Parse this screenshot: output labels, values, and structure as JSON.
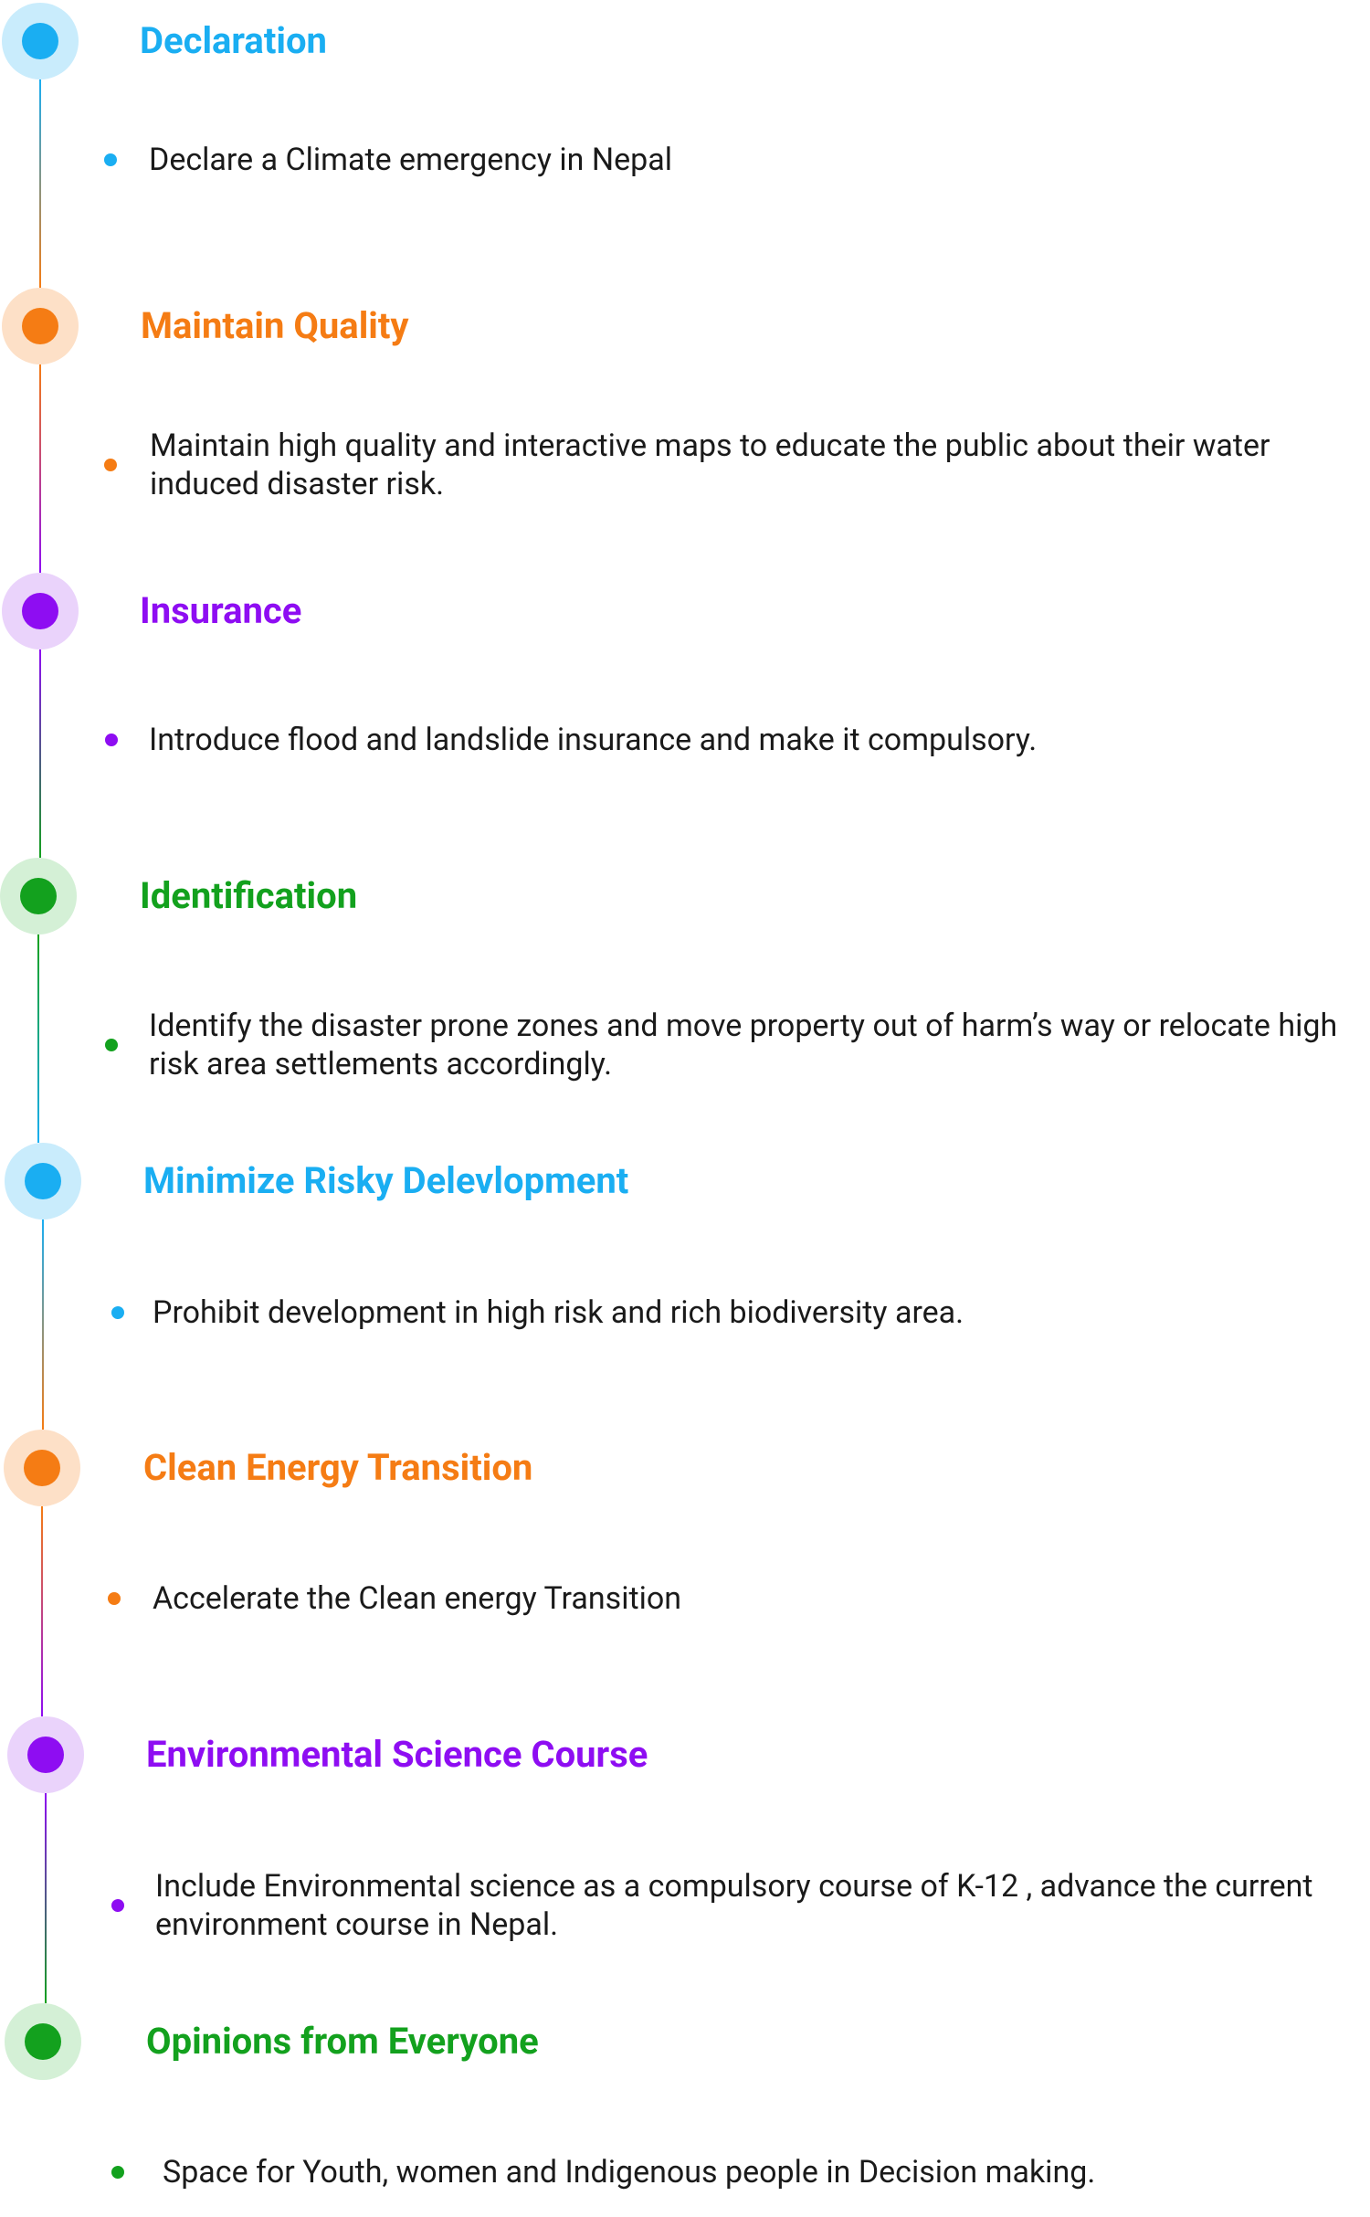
{
  "colors": {
    "blue": {
      "main": "#1aaef2",
      "halo": "#c9ecfc"
    },
    "orange": {
      "main": "#f57c14",
      "halo": "#fde0c7"
    },
    "purple": {
      "main": "#8e0df2",
      "halo": "#ead3fb"
    },
    "green": {
      "main": "#13a11e",
      "halo": "#d4f0d6"
    }
  },
  "steps": [
    {
      "title": "Declaration",
      "color": "blue",
      "description": "Declare a Climate emergency in Nepal"
    },
    {
      "title": "Maintain Quality",
      "color": "orange",
      "description": "Maintain high quality and interactive maps to educate the public about their water induced disaster risk."
    },
    {
      "title": "Insurance",
      "color": "purple",
      "description": "Introduce flood and landslide insurance and make it compulsory."
    },
    {
      "title": "Identification",
      "color": "green",
      "description": "Identify  the disaster prone zones and move property out of harm’s way or relocate high risk area  settlements accordingly."
    },
    {
      "title": "Minimize Risky Delevlopment",
      "color": "blue",
      "description": "Prohibit development in high risk and rich biodiversity area."
    },
    {
      "title": "Clean Energy Transition",
      "color": "orange",
      "description": "Accelerate the Clean energy Transition"
    },
    {
      "title": "Environmental Science Course",
      "color": "purple",
      "description": "Include Environmental science as a compulsory course of K-12 , advance the current environment course in Nepal."
    },
    {
      "title": "Opinions from  Everyone",
      "color": "green",
      "description": " Space for Youth, women and Indigenous people in Decision making."
    }
  ]
}
